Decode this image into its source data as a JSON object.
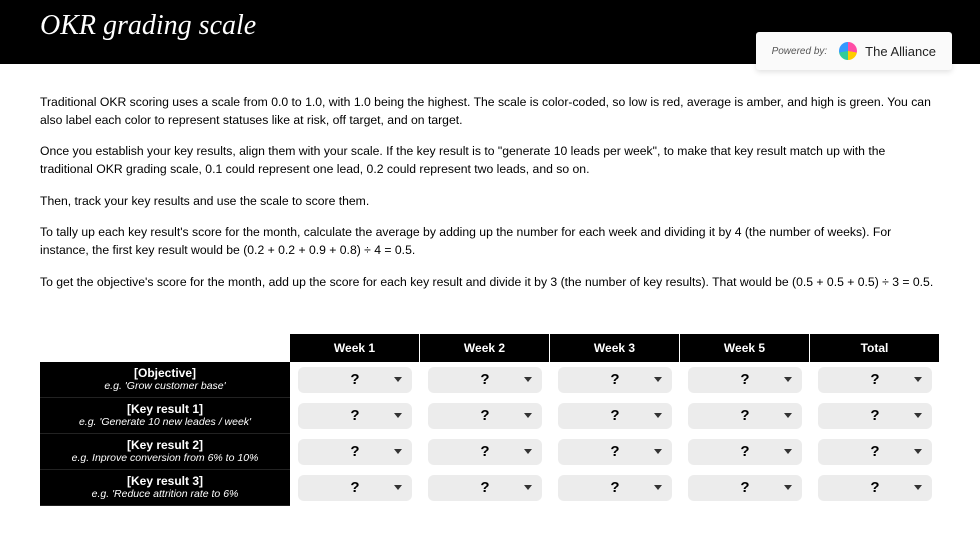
{
  "header": {
    "title": "OKR grading scale",
    "powered_label": "Powered by:",
    "brand": "The Alliance"
  },
  "paragraphs": [
    "Traditional OKR scoring uses a scale from 0.0 to 1.0, with 1.0 being the highest. The scale is color-coded, so low is red, average is amber, and high is green. You can also label each color to represent statuses like at risk, off target, and on target.",
    "Once you establish your key results, align them with your scale. If the key result is to \"generate 10 leads per week\", to make that key result match up with the traditional OKR grading scale, 0.1 could represent one lead, 0.2 could represent two leads, and so on.",
    "Then, track your key results and use the scale to score them.",
    "To tally up each key result's score for the month, calculate the average by adding up the number for each week and dividing it by 4 (the number of weeks). For instance, the first key result would be (0.2 + 0.2 + 0.9 + 0.8) ÷ 4 = 0.5.",
    "To get the objective's score for the month, add up the score for each key result and divide it by 3 (the number of key results). That would be (0.5 + 0.5 + 0.5) ÷ 3 = 0.5."
  ],
  "table": {
    "columns": [
      "Week 1",
      "Week 2",
      "Week 3",
      "Week 5",
      "Total"
    ],
    "rows": [
      {
        "title": "[Objective]",
        "subtitle": "e.g. 'Grow customer base'",
        "cells": [
          "?",
          "?",
          "?",
          "?",
          "?"
        ]
      },
      {
        "title": "[Key result 1]",
        "subtitle": "e.g. 'Generate 10 new leades / week'",
        "cells": [
          "?",
          "?",
          "?",
          "?",
          "?"
        ]
      },
      {
        "title": "[Key result 2]",
        "subtitle": "e.g. Inprove conversion from 6% to 10%",
        "cells": [
          "?",
          "?",
          "?",
          "?",
          "?"
        ]
      },
      {
        "title": "[Key result 3]",
        "subtitle": "e.g. 'Reduce attrition rate to 6%",
        "cells": [
          "?",
          "?",
          "?",
          "?",
          "?"
        ]
      }
    ],
    "dropdown_bg": "#ececec",
    "header_bg": "#000000",
    "header_fg": "#ffffff"
  }
}
